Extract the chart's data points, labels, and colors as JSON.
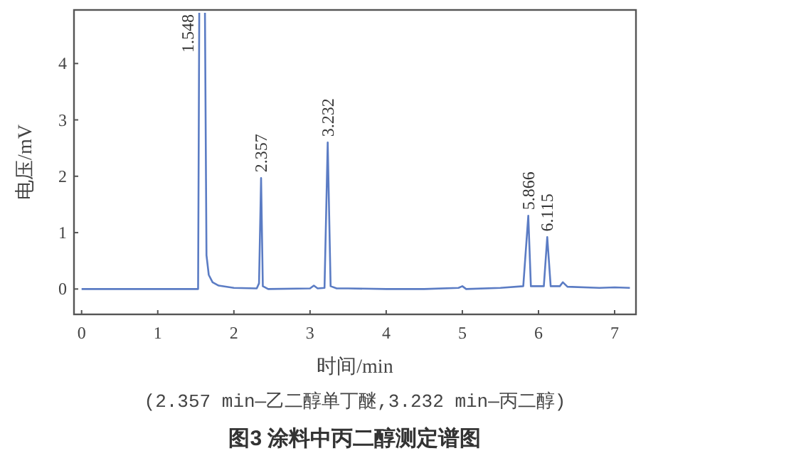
{
  "chart_data": {
    "type": "line",
    "title": "图3 涂料中丙二醇测定谱图",
    "xlabel": "时间/min",
    "ylabel": "电压/mV",
    "x": [
      0,
      0.5,
      1.0,
      1.5,
      1.53,
      1.545,
      1.6,
      1.62,
      1.64,
      1.67,
      1.72,
      1.8,
      2.0,
      2.3,
      2.33,
      2.357,
      2.38,
      2.45,
      3.0,
      3.05,
      3.1,
      3.19,
      3.232,
      3.27,
      3.35,
      3.5,
      4.0,
      4.5,
      4.95,
      5.0,
      5.05,
      5.5,
      5.8,
      5.866,
      5.9,
      6.0,
      6.07,
      6.115,
      6.16,
      6.28,
      6.32,
      6.38,
      6.8,
      7.0,
      7.2
    ],
    "values": [
      0,
      0,
      0,
      0,
      0,
      4.9,
      null,
      4.9,
      0.6,
      0.25,
      0.12,
      0.06,
      0.02,
      0.01,
      0.1,
      1.97,
      0.05,
      0,
      0.01,
      0.06,
      0.01,
      0.02,
      2.6,
      0.05,
      0.01,
      0.01,
      0,
      0,
      0.02,
      0.05,
      0,
      0.02,
      0.05,
      1.3,
      0.05,
      0.05,
      0.05,
      0.92,
      0.05,
      0.05,
      0.12,
      0.04,
      0.02,
      0.03,
      0.02
    ],
    "color": "#5b7cc4",
    "xlim": [
      -0.1,
      7.28
    ],
    "ylim": [
      -0.45,
      4.95
    ],
    "xticks": [
      0,
      1,
      2,
      3,
      4,
      5,
      6,
      7
    ],
    "yticks": [
      0,
      1,
      2,
      3,
      4
    ],
    "annotations": [
      {
        "text": "1.548",
        "x": 1.548
      },
      {
        "text": "2.357",
        "x": 2.357,
        "y": 1.97
      },
      {
        "text": "3.232",
        "x": 3.232,
        "y": 2.6
      },
      {
        "text": "5.866",
        "x": 5.866,
        "y": 1.3
      },
      {
        "text": "6.115",
        "x": 6.115,
        "y": 0.92
      },
      "(2.357 min—乙二醇单丁醚,3.232 min—丙二醇)"
    ]
  }
}
